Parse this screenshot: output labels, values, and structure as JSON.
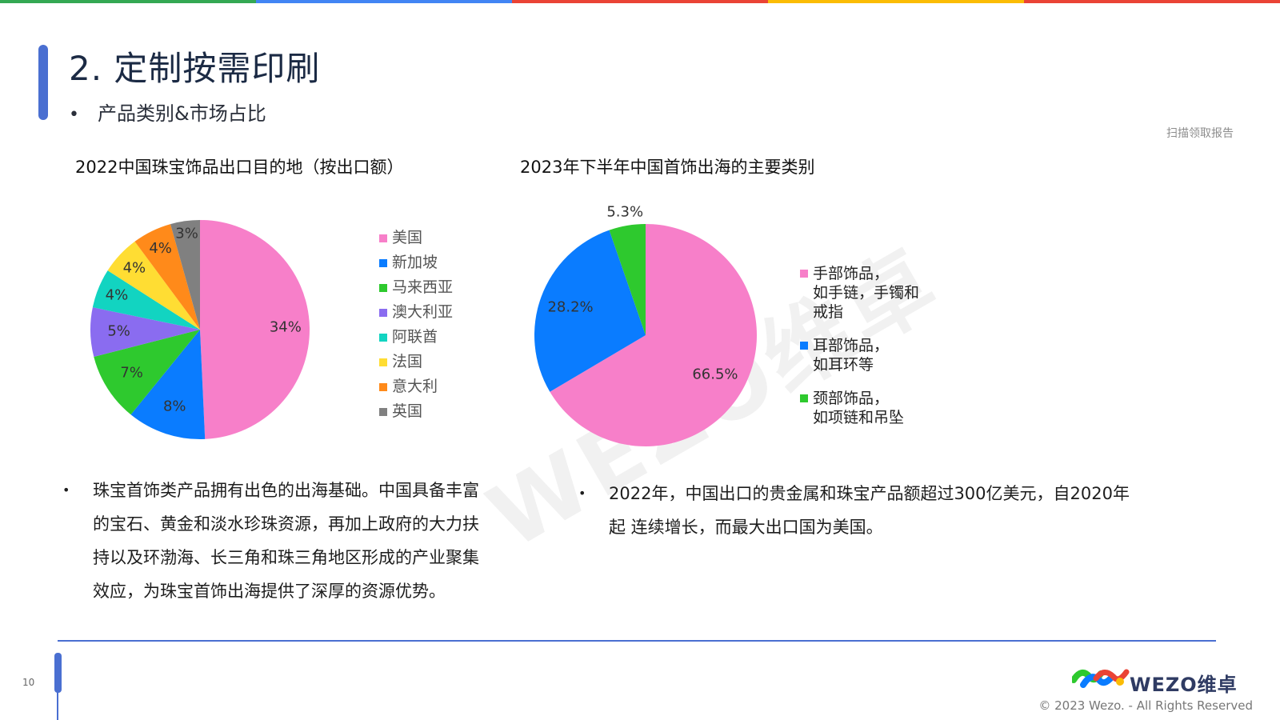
{
  "colors": {
    "topbar": [
      "#34a853",
      "#4285f4",
      "#ea4335",
      "#fbbc05",
      "#ea4335"
    ],
    "accent": "#4a6fd1",
    "pink": "#f77fc9",
    "blue": "#0a7cff",
    "green": "#2ec92e",
    "purple": "#8a6cf0",
    "teal": "#12d4c1",
    "yellow": "#ffdd33",
    "orange": "#ff8a1a",
    "gray": "#808080"
  },
  "header": {
    "title": "2. 定制按需印刷",
    "bullet": "•",
    "subtitle": "产品类别&市场占比",
    "scan_text": "扫描领取报告"
  },
  "watermark": "WEZO维卓",
  "chart_data": [
    {
      "type": "pie",
      "title": "2022中国珠宝饰品出口目的地（按出口额）",
      "categories": [
        "美国",
        "新加坡",
        "马来西亚",
        "澳大利亚",
        "阿联酋",
        "法国",
        "意大利",
        "英国"
      ],
      "values": [
        34,
        8,
        7,
        5,
        4,
        4,
        4,
        3
      ],
      "labels": [
        "34%",
        "8%",
        "7%",
        "5%",
        "4%",
        "4%",
        "4%",
        "3%"
      ],
      "colors": [
        "#f77fc9",
        "#0a7cff",
        "#2ec92e",
        "#8a6cf0",
        "#12d4c1",
        "#ffdd33",
        "#ff8a1a",
        "#808080"
      ],
      "legend_position": "right"
    },
    {
      "type": "pie",
      "title": "2023年下半年中国首饰出海的主要类别",
      "categories": [
        "手部饰品，如手链，手镯和戒指",
        "耳部饰品，如耳环等",
        "颈部饰品，如项链和吊坠"
      ],
      "legend_lines": [
        [
          "手部饰品，",
          "如手链，手镯和",
          "戒指"
        ],
        [
          "耳部饰品，",
          "如耳环等"
        ],
        [
          "颈部饰品，",
          "如项链和吊坠"
        ]
      ],
      "values": [
        66.5,
        28.2,
        5.3
      ],
      "labels": [
        "66.5%",
        "28.2%",
        "5.3%"
      ],
      "colors": [
        "#f77fc9",
        "#0a7cff",
        "#2ec92e"
      ],
      "legend_position": "right"
    }
  ],
  "bullets": {
    "mark": "•",
    "left_lines": [
      "珠宝首饰类产品拥有出色的出海基础。中国具备丰富",
      "的宝石、黄金和淡水珍珠资源，再加上政府的大力扶",
      "持以及环渤海、长三角和珠三角地区形成的产业聚集",
      "效应，为珠宝首饰出海提供了深厚的资源优势。"
    ],
    "right_lines": [
      "2022年，中国出口的贵金属和珠宝产品额超过300亿美元，自2020年",
      "起 连续增长，而最大出口国为美国。"
    ]
  },
  "footer": {
    "page_number": "10",
    "logo_text": "WEZO维卓",
    "copyright": "© 2023 Wezo. - All Rights Reserved"
  }
}
